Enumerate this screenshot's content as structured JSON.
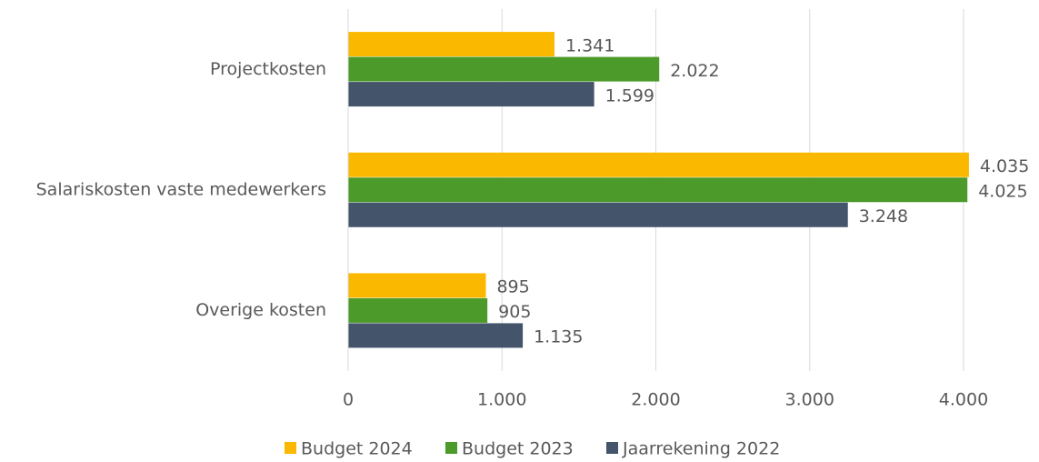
{
  "chart_data": {
    "type": "bar",
    "orientation": "horizontal",
    "categories": [
      "Projectkosten",
      "Salariskosten vaste medewerkers",
      "Overige kosten"
    ],
    "series": [
      {
        "name": "Budget 2024",
        "color": "#fbb800",
        "values": [
          1341,
          4035,
          895
        ],
        "value_labels": [
          "1.341",
          "4.035",
          "895"
        ]
      },
      {
        "name": "Budget 2023",
        "color": "#4c9a2a",
        "values": [
          2022,
          4025,
          905
        ],
        "value_labels": [
          "2.022",
          "4.025",
          "905"
        ]
      },
      {
        "name": "Jaarrekening 2022",
        "color": "#44546a",
        "values": [
          1599,
          3248,
          1135
        ],
        "value_labels": [
          "1.599",
          "3.248",
          "1.135"
        ]
      }
    ],
    "xlim": [
      0,
      4000
    ],
    "xticks": [
      0,
      {
        "value": 1000,
        "label": "1.000"
      },
      {
        "value": 2000,
        "label": "2.000"
      },
      {
        "value": 3000,
        "label": "3.000"
      },
      {
        "value": 4000,
        "label": "4.000"
      }
    ],
    "grid": true,
    "legend": "bottom"
  }
}
